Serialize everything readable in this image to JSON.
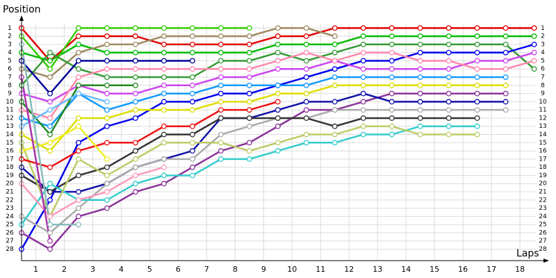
{
  "chart_data": {
    "type": "line",
    "title": "Position",
    "x_label": "Laps",
    "x": [
      0,
      1,
      2,
      3,
      4,
      5,
      6,
      7,
      8,
      9,
      10,
      11,
      12,
      13,
      14,
      15,
      16,
      17,
      18
    ],
    "xlim": [
      0,
      18.4
    ],
    "xticks": [
      {
        "value": 0.5,
        "label": "1"
      },
      {
        "value": 1.5,
        "label": "2"
      },
      {
        "value": 2.5,
        "label": "3"
      },
      {
        "value": 3.5,
        "label": "4"
      },
      {
        "value": 4.5,
        "label": "5"
      },
      {
        "value": 5.5,
        "label": "6"
      },
      {
        "value": 6.5,
        "label": "7"
      },
      {
        "value": 7.5,
        "label": "8"
      },
      {
        "value": 8.5,
        "label": "9"
      },
      {
        "value": 9.5,
        "label": "10"
      },
      {
        "value": 10.5,
        "label": "11"
      },
      {
        "value": 11.5,
        "label": "12"
      },
      {
        "value": 12.5,
        "label": "13"
      },
      {
        "value": 13.5,
        "label": "14"
      },
      {
        "value": 14.5,
        "label": "15"
      },
      {
        "value": 15.5,
        "label": "16"
      },
      {
        "value": 16.5,
        "label": "17"
      },
      {
        "value": 17.5,
        "label": "18"
      }
    ],
    "ylim": [
      29.4,
      -0.3
    ],
    "yticks": [
      1,
      2,
      3,
      4,
      5,
      6,
      7,
      8,
      9,
      10,
      11,
      12,
      13,
      14,
      15,
      16,
      17,
      18,
      19,
      20,
      21,
      22,
      23,
      24,
      25,
      26,
      27,
      28
    ],
    "grid": true,
    "series": [
      {
        "color": "#e00000",
        "values": [
          1,
          5,
          2,
          2,
          2,
          3,
          3,
          3,
          3,
          2,
          2,
          1,
          1,
          1,
          1,
          1,
          1,
          1,
          1
        ]
      },
      {
        "color": "#00bb00",
        "values": [
          4,
          5,
          3,
          4,
          4,
          4,
          4,
          4,
          4,
          3,
          3,
          3,
          2,
          2,
          2,
          2,
          2,
          2,
          2
        ]
      },
      {
        "color": "#33cc00",
        "values": [
          2,
          6,
          1,
          1,
          1,
          1,
          1,
          1,
          1,
          null,
          null,
          null,
          null,
          null,
          null,
          null,
          null,
          null,
          null
        ]
      },
      {
        "color": "#a08860",
        "values": [
          6,
          7,
          4,
          3,
          3,
          2,
          2,
          2,
          2,
          1,
          1,
          2,
          null,
          null,
          null,
          null,
          null,
          null,
          null
        ]
      },
      {
        "color": "#339933",
        "values": [
          8,
          4,
          6,
          7,
          7,
          7,
          7,
          5,
          5,
          4,
          5,
          4,
          3,
          3,
          3,
          3,
          3,
          3,
          6
        ]
      },
      {
        "color": "#0000ee",
        "values": [
          28,
          22,
          15,
          13,
          12,
          10,
          10,
          9,
          9,
          8,
          7,
          6,
          5,
          5,
          4,
          4,
          4,
          4,
          3
        ]
      },
      {
        "color": "#000099",
        "values": [
          5,
          9,
          5,
          5,
          5,
          5,
          5,
          null,
          null,
          null,
          null,
          null,
          null,
          null,
          null,
          null,
          null,
          null,
          null
        ]
      },
      {
        "color": "#cc44ee",
        "values": [
          9,
          10,
          8,
          9,
          9,
          8,
          8,
          7,
          7,
          6,
          6,
          5,
          6,
          6,
          6,
          6,
          5,
          5,
          4
        ]
      },
      {
        "color": "#ff88aa",
        "values": [
          11,
          12,
          7,
          6,
          6,
          6,
          6,
          6,
          6,
          5,
          4,
          5,
          4,
          4,
          5,
          5,
          6,
          6,
          5
        ]
      },
      {
        "color": "#1199ff",
        "values": [
          12,
          13,
          9,
          11,
          10,
          9,
          9,
          8,
          8,
          8,
          8,
          7,
          7,
          7,
          7,
          7,
          7,
          7,
          null
        ]
      },
      {
        "color": "#dddd00",
        "values": [
          14,
          16,
          12,
          12,
          11,
          11,
          11,
          10,
          10,
          9,
          9,
          8,
          8,
          8,
          8,
          8,
          8,
          8,
          null
        ]
      },
      {
        "color": "#8a3399",
        "values": [
          26,
          28,
          24,
          23,
          21,
          20,
          18,
          16,
          15,
          13,
          11,
          11,
          10,
          9,
          9,
          9,
          9,
          9,
          null
        ]
      },
      {
        "color": "#1111aa",
        "values": [
          18,
          21,
          21,
          20,
          18,
          17,
          16,
          12,
          12,
          11,
          10,
          10,
          9,
          10,
          10,
          10,
          10,
          10,
          null
        ]
      },
      {
        "color": "#aaaaaa",
        "values": [
          24,
          26,
          23,
          20,
          18,
          17,
          17,
          14,
          13,
          12,
          12,
          11,
          11,
          11,
          11,
          11,
          11,
          11,
          null
        ]
      },
      {
        "color": "#333333",
        "values": [
          19,
          21,
          19,
          18,
          16,
          14,
          14,
          12,
          12,
          12,
          12,
          13,
          12,
          12,
          12,
          12,
          12,
          null,
          null
        ]
      },
      {
        "color": "#33cccc",
        "values": [
          25,
          20,
          22,
          22,
          20,
          19,
          19,
          17,
          17,
          16,
          15,
          15,
          14,
          14,
          13,
          13,
          13,
          null,
          null
        ]
      },
      {
        "color": "#bbcc66",
        "values": [
          15,
          24,
          17,
          19,
          17,
          15,
          15,
          15,
          16,
          15,
          14,
          14,
          13,
          13,
          14,
          14,
          14,
          null,
          null
        ]
      },
      {
        "color": "#ff99bb",
        "values": [
          20,
          24,
          22,
          21,
          19,
          18,
          null,
          null,
          null,
          null,
          null,
          null,
          null,
          null,
          null,
          null,
          null,
          null,
          null
        ]
      },
      {
        "color": "#ee1111",
        "values": [
          17,
          18,
          16,
          15,
          15,
          13,
          13,
          11,
          11,
          10,
          null,
          null,
          null,
          null,
          null,
          null,
          null,
          null,
          null
        ]
      },
      {
        "color": "#228822",
        "values": [
          10,
          14,
          8,
          8,
          8,
          null,
          null,
          null,
          null,
          null,
          null,
          null,
          null,
          null,
          null,
          null,
          null,
          null,
          null
        ]
      },
      {
        "color": "#66bbff",
        "values": [
          13,
          11,
          9,
          10,
          null,
          null,
          null,
          null,
          null,
          null,
          null,
          null,
          null,
          null,
          null,
          null,
          null,
          null,
          null
        ]
      },
      {
        "color": "#eeee22",
        "values": [
          16,
          15,
          13,
          17,
          null,
          null,
          null,
          null,
          null,
          null,
          null,
          null,
          null,
          null,
          null,
          null,
          null,
          null,
          null
        ]
      },
      {
        "color": "#88bbbb",
        "values": [
          3,
          25,
          25,
          null,
          null,
          null,
          null,
          null,
          null,
          null,
          null,
          null,
          null,
          null,
          null,
          null,
          null,
          null,
          null
        ]
      },
      {
        "color": "#aa33aa",
        "values": [
          7,
          27,
          null,
          null,
          null,
          null,
          null,
          null,
          null,
          null,
          null,
          null,
          null,
          null,
          null,
          null,
          null,
          null,
          null
        ]
      }
    ]
  }
}
